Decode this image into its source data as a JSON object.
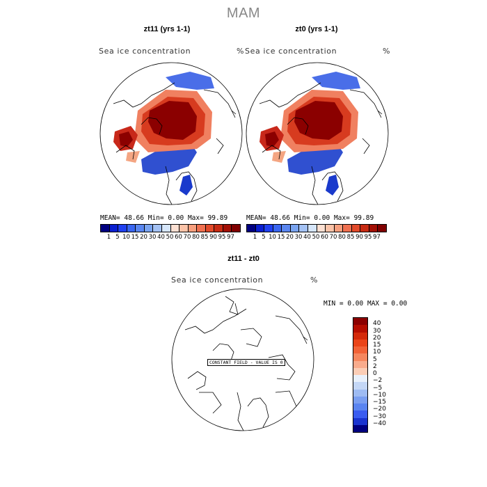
{
  "title": "MAM",
  "colors": {
    "ice_core": "#8b0000",
    "ice_high": "#d73b1f",
    "ice_mid": "#f4a582",
    "ice_edge": "#fddbc7",
    "neg_blue": "#0000a0"
  },
  "chart_data": [
    {
      "type": "heatmap",
      "title": "zt11 (yrs 1-1)",
      "variable": "Sea ice concentration",
      "units": "%",
      "projection": "north polar stereographic",
      "stats": {
        "mean_label": "MEAN=",
        "mean": "48.66",
        "min_label": "Min=",
        "min": "0.00",
        "max_label": "Max=",
        "max": "99.89"
      },
      "colorbar": {
        "orientation": "horizontal",
        "ticks": [
          "1",
          "5",
          "10",
          "15",
          "20",
          "30",
          "40",
          "50",
          "60",
          "70",
          "80",
          "85",
          "90",
          "95",
          "97"
        ],
        "colors": [
          "#000080",
          "#0a1fd0",
          "#2040f0",
          "#3a66f0",
          "#5a86f0",
          "#7aa4f0",
          "#a4c2f4",
          "#d6e6fa",
          "#fde0d2",
          "#fbc3a8",
          "#f79f7e",
          "#f07050",
          "#e24a2a",
          "#c72a12",
          "#a31005",
          "#800000"
        ]
      }
    },
    {
      "type": "heatmap",
      "title": "zt0 (yrs 1-1)",
      "variable": "Sea ice concentration",
      "units": "%",
      "projection": "north polar stereographic",
      "stats": {
        "mean_label": "MEAN=",
        "mean": "48.66",
        "min_label": "Min=",
        "min": "0.00",
        "max_label": "Max=",
        "max": "99.89"
      },
      "colorbar": {
        "orientation": "horizontal",
        "ticks": [
          "1",
          "5",
          "10",
          "15",
          "20",
          "30",
          "40",
          "50",
          "60",
          "70",
          "80",
          "85",
          "90",
          "95",
          "97"
        ],
        "colors": [
          "#000080",
          "#0a1fd0",
          "#2040f0",
          "#3a66f0",
          "#5a86f0",
          "#7aa4f0",
          "#a4c2f4",
          "#d6e6fa",
          "#fde0d2",
          "#fbc3a8",
          "#f79f7e",
          "#f07050",
          "#e24a2a",
          "#c72a12",
          "#a31005",
          "#800000"
        ]
      }
    },
    {
      "type": "heatmap",
      "title": "zt11 - zt0",
      "variable": "Sea ice concentration",
      "units": "%",
      "projection": "north polar stereographic",
      "stats": {
        "min_label": "MIN =",
        "min": "0.00",
        "max_label": "MAX =",
        "max": "0.00"
      },
      "annotation": "CONSTANT FIELD - VALUE IS 0",
      "colorbar": {
        "orientation": "vertical",
        "ticks": [
          "40",
          "30",
          "20",
          "15",
          "10",
          "5",
          "2",
          "0",
          "−2",
          "−5",
          "−10",
          "−15",
          "−20",
          "−30",
          "−40"
        ],
        "colors": [
          "#8b0000",
          "#b50d00",
          "#d42a0a",
          "#ea4418",
          "#f26236",
          "#f6875e",
          "#f9ab8c",
          "#fbcdb6",
          "#e8f0fb",
          "#c4d7f6",
          "#9ebbf2",
          "#7a9ef0",
          "#5a84f0",
          "#3a5cf0",
          "#1a34d0",
          "#000080"
        ]
      }
    }
  ]
}
